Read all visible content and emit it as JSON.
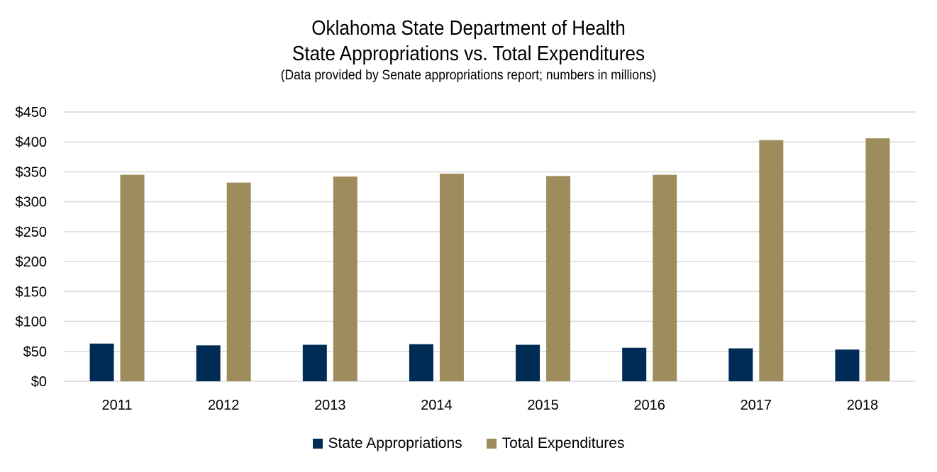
{
  "chart_data": {
    "type": "bar",
    "title": "Oklahoma State Department of Health",
    "subtitle": "State Appropriations vs. Total Expenditures",
    "note": "(Data provided by Senate appropriations report; numbers in millions)",
    "categories": [
      "2011",
      "2012",
      "2013",
      "2014",
      "2015",
      "2016",
      "2017",
      "2018"
    ],
    "series": [
      {
        "name": "State Appropriations",
        "color": "#002b55",
        "values": [
          63,
          60,
          61,
          62,
          61,
          56,
          55,
          53
        ]
      },
      {
        "name": "Total Expenditures",
        "color": "#9e8c5c",
        "values": [
          345,
          332,
          342,
          347,
          343,
          345,
          403,
          406
        ]
      }
    ],
    "ylim": [
      0,
      450
    ],
    "yticks": [
      0,
      50,
      100,
      150,
      200,
      250,
      300,
      350,
      400,
      450
    ],
    "ytick_labels": [
      "$0",
      "$50",
      "$100",
      "$150",
      "$200",
      "$250",
      "$300",
      "$350",
      "$400",
      "$450"
    ],
    "grid": true,
    "gridline_color": "#d9d9d9",
    "legend_position": "bottom"
  }
}
